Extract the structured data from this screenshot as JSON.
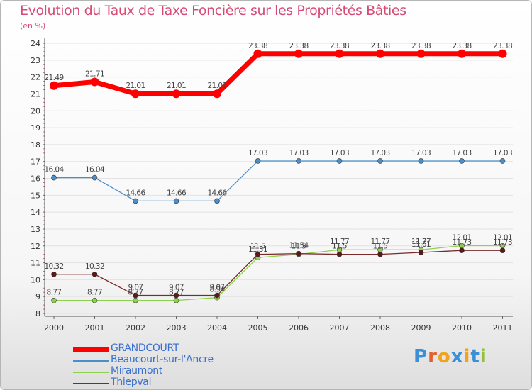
{
  "title": "Evolution du Taux de Taxe Foncière sur les Propriétés Bâties",
  "unit": "(en %)",
  "brand": "Proxiti",
  "chart_data": {
    "type": "line",
    "title": "Evolution du Taux de Taxe Foncière sur les Propriétés Bâties",
    "ylabel": "(en %)",
    "xlabel": "",
    "ylim": [
      8,
      24
    ],
    "yticks": [
      "8",
      "9",
      "10",
      "11",
      "12",
      "13",
      "14",
      "15",
      "16",
      "17",
      "18",
      "19",
      "20",
      "21",
      "22",
      "23",
      "24"
    ],
    "categories": [
      "2000",
      "2001",
      "2002",
      "2003",
      "2004",
      "2005",
      "2006",
      "2007",
      "2008",
      "2009",
      "2010",
      "2011"
    ],
    "series": [
      {
        "name": "GRANDCOURT",
        "color": "#ff0000",
        "values": [
          21.49,
          21.71,
          21.01,
          21.01,
          21.01,
          23.38,
          23.38,
          23.38,
          23.38,
          23.38,
          23.38,
          23.38
        ],
        "labels": [
          "21.49",
          "21.71",
          "21.01",
          "21.01",
          "21.01",
          "23.38",
          "23.38",
          "23.38",
          "23.38",
          "23.38",
          "23.38",
          "23.38"
        ]
      },
      {
        "name": "Beaucourt-sur-l'Ancre",
        "color": "#4a8fcc",
        "values": [
          16.04,
          16.04,
          14.66,
          14.66,
          14.66,
          17.03,
          17.03,
          17.03,
          17.03,
          17.03,
          17.03,
          17.03
        ],
        "labels": [
          "16.04",
          "16.04",
          "14.66",
          "14.66",
          "14.66",
          "17.03",
          "17.03",
          "17.03",
          "17.03",
          "17.03",
          "17.03",
          "17.03"
        ]
      },
      {
        "name": "Miraumont",
        "color": "#8fd14f",
        "values": [
          8.77,
          8.77,
          8.77,
          8.77,
          8.94,
          11.31,
          11.5,
          11.77,
          11.77,
          11.77,
          12.01,
          12.01
        ],
        "labels": [
          "8.77",
          "8.77",
          "8.77",
          "8.77",
          "8.94",
          "11.31",
          "11.5",
          "11.77",
          "11.77",
          "11.77",
          "12.01",
          "12.01"
        ]
      },
      {
        "name": "Thiepval",
        "color": "#7a2a2a",
        "values": [
          10.32,
          10.32,
          9.07,
          9.07,
          9.07,
          11.5,
          11.54,
          11.5,
          11.5,
          11.61,
          11.73,
          11.73
        ],
        "labels": [
          "10.32",
          "10.32",
          "9.07",
          "9.07",
          "9.07",
          "11.5",
          "11.54",
          "11.5",
          "11.5",
          "11.61",
          "11.73",
          "11.73"
        ]
      }
    ]
  }
}
